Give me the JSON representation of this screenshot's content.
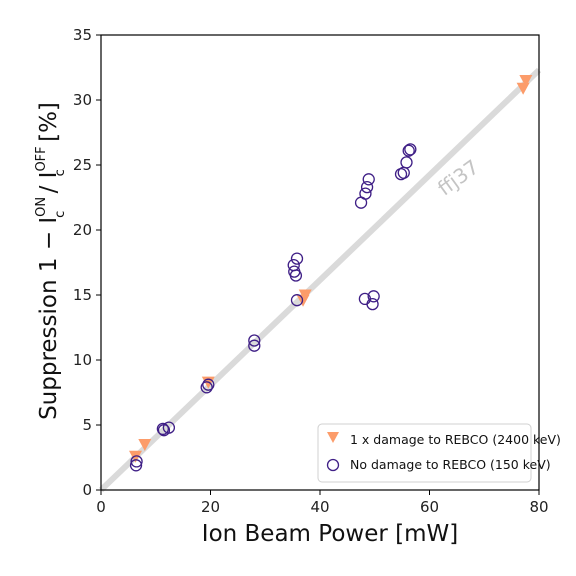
{
  "chart_data": {
    "type": "scatter",
    "xlabel": "Ion Beam Power [mW]",
    "ylabel": {
      "prefix": "Suppression 1 − I",
      "sup1": "ON",
      "sub1": "c",
      "mid": " / I",
      "sup2": "OFF",
      "sub2": "c",
      "suffix": " [%]"
    },
    "xlim": [
      0,
      80
    ],
    "ylim": [
      0,
      35
    ],
    "xticks": [
      "0",
      "20",
      "40",
      "60",
      "80"
    ],
    "yticks": [
      "0",
      "5",
      "10",
      "15",
      "20",
      "25",
      "30",
      "35"
    ],
    "watermark": "ffj37",
    "grid": false,
    "legend_position": "lower-right",
    "colors": {
      "damage": "#fc9c6a",
      "no_damage": "#3f1f86",
      "fit_line": "#dadada"
    },
    "fit_line": {
      "x": [
        0,
        80
      ],
      "y": [
        0,
        32.3
      ]
    },
    "series": [
      {
        "name": "1 x damage to REBCO (2400 keV)",
        "marker": "triangle-down",
        "points": [
          [
            6.3,
            2.6
          ],
          [
            8.0,
            3.5
          ],
          [
            19.6,
            8.3
          ],
          [
            36.9,
            14.6
          ],
          [
            37.3,
            15.0
          ],
          [
            77.1,
            30.9
          ],
          [
            77.6,
            31.5
          ]
        ]
      },
      {
        "name": "No damage to REBCO (150 keV)",
        "marker": "circle",
        "points": [
          [
            6.4,
            1.9
          ],
          [
            6.5,
            2.2
          ],
          [
            11.3,
            4.7
          ],
          [
            11.5,
            4.6
          ],
          [
            12.4,
            4.8
          ],
          [
            19.3,
            7.9
          ],
          [
            19.6,
            8.1
          ],
          [
            28.0,
            11.1
          ],
          [
            28.0,
            11.5
          ],
          [
            35.2,
            17.3
          ],
          [
            35.3,
            16.8
          ],
          [
            35.6,
            16.5
          ],
          [
            35.8,
            17.8
          ],
          [
            35.8,
            14.6
          ],
          [
            47.5,
            22.1
          ],
          [
            48.3,
            22.8
          ],
          [
            48.6,
            23.3
          ],
          [
            48.9,
            23.9
          ],
          [
            48.2,
            14.7
          ],
          [
            49.6,
            14.3
          ],
          [
            49.8,
            14.9
          ],
          [
            54.8,
            24.3
          ],
          [
            55.3,
            24.4
          ],
          [
            55.8,
            25.2
          ],
          [
            56.2,
            26.1
          ],
          [
            56.5,
            26.2
          ]
        ]
      }
    ]
  }
}
